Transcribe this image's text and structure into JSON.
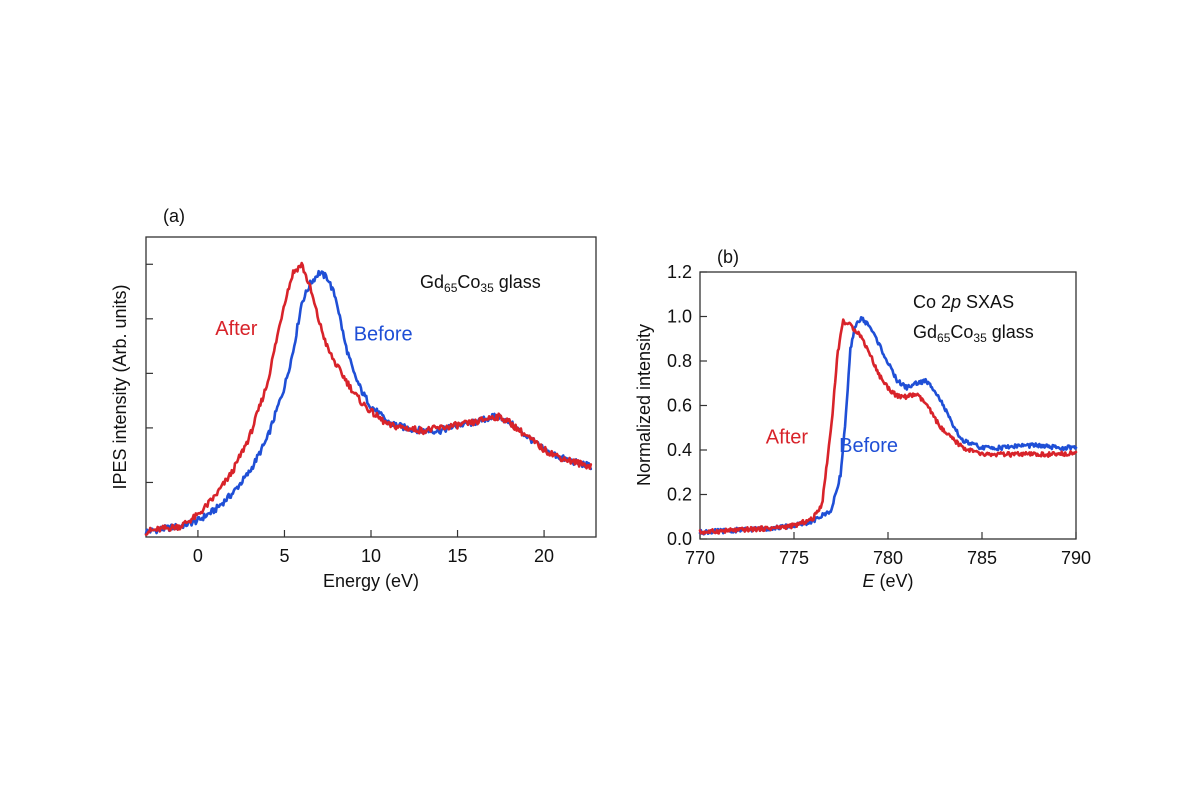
{
  "chart_data": [
    {
      "type": "line",
      "panel_label": "(a)",
      "annotation": {
        "main": "Gd",
        "sub1": "65",
        "mid": "Co",
        "sub2": "35",
        "tail": " glass"
      },
      "xlabel": "Energy  (eV)",
      "ylabel": "IPES intensity  (Arb. units)",
      "xlim": [
        -3,
        23
      ],
      "ylim": [
        0,
        1.1
      ],
      "xticks": [
        0,
        5,
        10,
        15,
        20
      ],
      "ytick_values": [
        0.2,
        0.4,
        0.6,
        0.8,
        1.0
      ],
      "grid": false,
      "series": [
        {
          "name": "Before",
          "color": "#1f4fd6",
          "x": [
            -3,
            -2,
            -1,
            0,
            1,
            2,
            3,
            4,
            5,
            5.5,
            6,
            6.5,
            7,
            7.5,
            8,
            8.5,
            9,
            9.5,
            10,
            11,
            12,
            13,
            14,
            15,
            16,
            17,
            17.5,
            18,
            19,
            20,
            21,
            22,
            22.7
          ],
          "y": [
            0.02,
            0.03,
            0.04,
            0.06,
            0.1,
            0.16,
            0.24,
            0.36,
            0.55,
            0.68,
            0.86,
            0.93,
            0.97,
            0.95,
            0.87,
            0.71,
            0.6,
            0.53,
            0.48,
            0.42,
            0.4,
            0.39,
            0.39,
            0.41,
            0.42,
            0.44,
            0.44,
            0.42,
            0.37,
            0.32,
            0.29,
            0.27,
            0.26
          ]
        },
        {
          "name": "After",
          "color": "#d8232a",
          "x": [
            -3,
            -2,
            -1,
            0,
            1,
            2,
            3,
            4,
            4.5,
            5,
            5.5,
            6,
            6.5,
            7,
            7.5,
            8,
            8.5,
            9,
            9.5,
            10,
            11,
            12,
            13,
            14,
            15,
            16,
            17,
            17.5,
            18,
            19,
            20,
            21,
            22,
            22.7
          ],
          "y": [
            0.02,
            0.03,
            0.04,
            0.08,
            0.15,
            0.24,
            0.37,
            0.56,
            0.71,
            0.86,
            0.97,
            1.0,
            0.91,
            0.79,
            0.69,
            0.63,
            0.58,
            0.53,
            0.49,
            0.46,
            0.41,
            0.4,
            0.39,
            0.4,
            0.41,
            0.42,
            0.44,
            0.44,
            0.42,
            0.37,
            0.32,
            0.29,
            0.27,
            0.26
          ]
        }
      ],
      "series_labels": [
        {
          "text": "After",
          "x": 1.0,
          "y": 0.74,
          "color": "#d8232a"
        },
        {
          "text": "Before",
          "x": 9.0,
          "y": 0.72,
          "color": "#1f4fd6"
        }
      ]
    },
    {
      "type": "line",
      "panel_label": "(b)",
      "annotation_line1": {
        "pre": "Co 2",
        "italic": "p",
        "post": " SXAS"
      },
      "annotation": {
        "main": "Gd",
        "sub1": "65",
        "mid": "Co",
        "sub2": "35",
        "tail": " glass"
      },
      "xlabel_italic": "E",
      "xlabel_rest": "  (eV)",
      "ylabel": "Normalized intensity",
      "xlim": [
        770,
        790
      ],
      "ylim": [
        0,
        1.2
      ],
      "xticks": [
        770,
        775,
        780,
        785,
        790
      ],
      "yticks": [
        0.0,
        0.2,
        0.4,
        0.6,
        0.8,
        1.0,
        1.2
      ],
      "ytick_labels": [
        "0.0",
        "0.2",
        "0.4",
        "0.6",
        "0.8",
        "1.0",
        "1.2"
      ],
      "grid": false,
      "series": [
        {
          "name": "Before",
          "color": "#1f4fd6",
          "x": [
            770,
            772,
            774,
            775,
            776,
            777,
            777.5,
            777.8,
            778.0,
            778.3,
            778.6,
            779,
            779.5,
            780,
            780.5,
            781,
            781.5,
            782,
            782.5,
            783,
            783.5,
            784,
            785,
            786,
            787,
            788,
            789,
            790
          ],
          "y": [
            0.03,
            0.04,
            0.05,
            0.06,
            0.08,
            0.13,
            0.3,
            0.6,
            0.85,
            0.97,
            0.99,
            0.96,
            0.88,
            0.79,
            0.71,
            0.68,
            0.7,
            0.71,
            0.67,
            0.59,
            0.5,
            0.44,
            0.41,
            0.41,
            0.42,
            0.42,
            0.41,
            0.41
          ]
        },
        {
          "name": "After",
          "color": "#d8232a",
          "x": [
            770,
            772,
            774,
            775,
            776,
            776.5,
            777,
            777.3,
            777.6,
            778.0,
            778.5,
            779,
            779.5,
            780,
            780.5,
            781,
            781.5,
            782,
            782.5,
            783,
            784,
            785,
            786,
            787,
            788,
            789,
            790
          ],
          "y": [
            0.03,
            0.04,
            0.05,
            0.06,
            0.09,
            0.16,
            0.52,
            0.82,
            0.98,
            0.96,
            0.92,
            0.84,
            0.74,
            0.68,
            0.64,
            0.64,
            0.65,
            0.61,
            0.54,
            0.48,
            0.41,
            0.38,
            0.38,
            0.38,
            0.38,
            0.38,
            0.39
          ]
        }
      ],
      "series_labels": [
        {
          "text": "After",
          "x": 773.5,
          "y": 0.43,
          "color": "#d8232a"
        },
        {
          "text": "Before",
          "x": 777.4,
          "y": 0.39,
          "color": "#1f4fd6"
        }
      ]
    }
  ]
}
